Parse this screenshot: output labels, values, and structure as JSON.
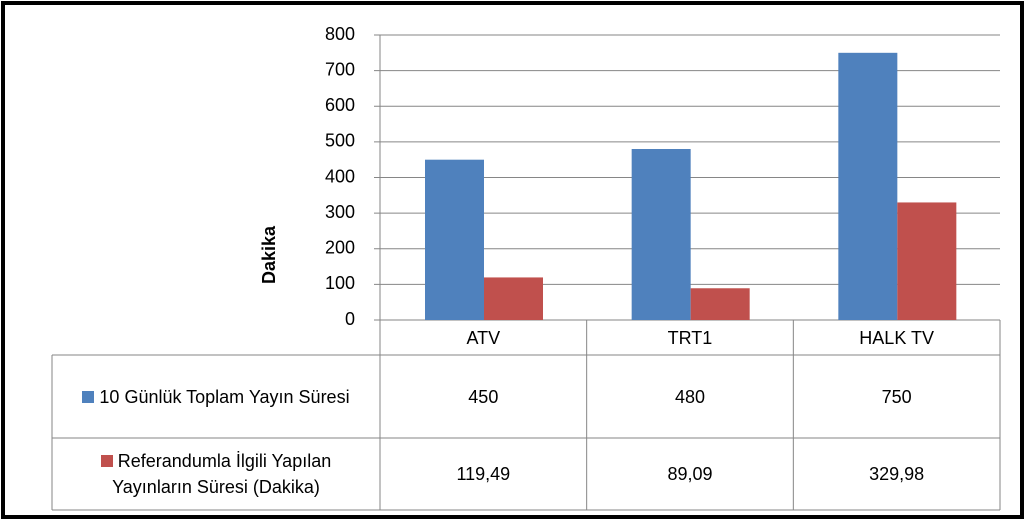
{
  "chart_data": {
    "type": "bar",
    "y_label": "Dakika",
    "categories": [
      "ATV",
      "TRT1",
      "HALK TV"
    ],
    "series": [
      {
        "name": "10 Günlük Toplam Yayın Süresi",
        "color": "#4f81bd",
        "values": [
          450,
          480,
          750
        ]
      },
      {
        "name": "Referandumla İlgili Yapılan Yayınların Süresi (Dakika)",
        "color": "#c0504d",
        "values": [
          119.49,
          89.09,
          329.98
        ],
        "value_labels": [
          "119,49",
          "89,09",
          "329,98"
        ]
      }
    ],
    "ylim": [
      0,
      800
    ],
    "yticks": [
      0,
      100,
      200,
      300,
      400,
      500,
      600,
      700,
      800
    ],
    "grid": true,
    "data_table": true
  }
}
